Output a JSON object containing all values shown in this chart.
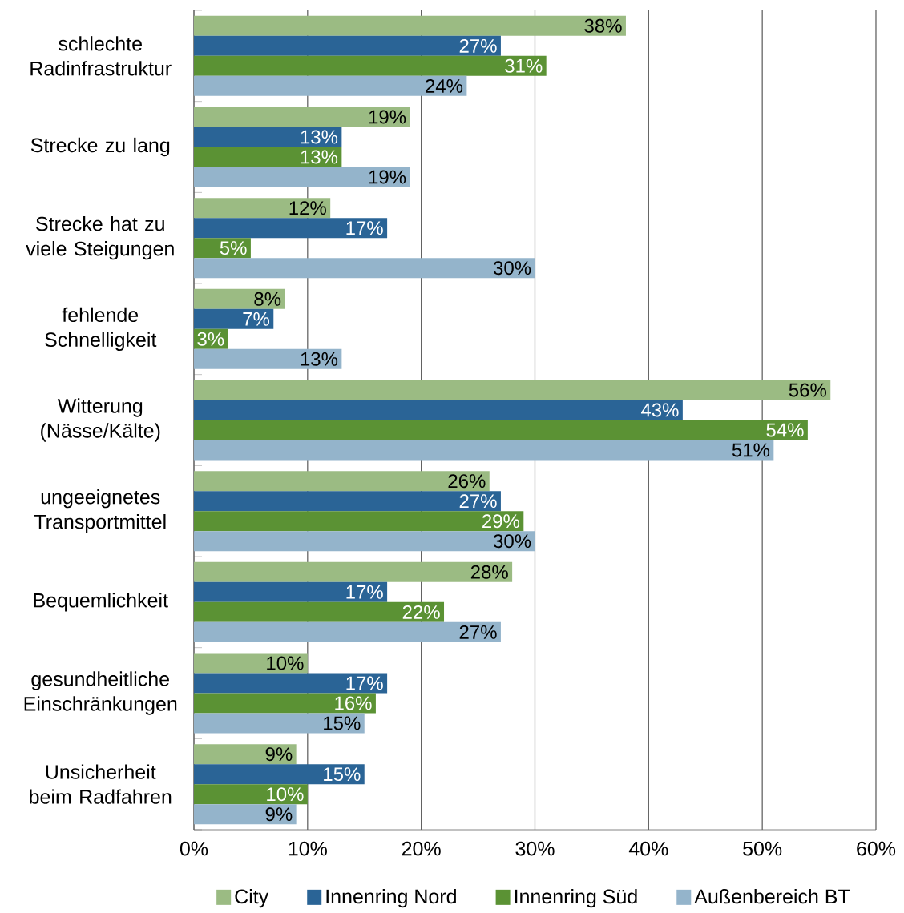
{
  "chart_data": {
    "type": "bar",
    "orientation": "horizontal",
    "categories": [
      "schlechte Radinfrastruktur",
      "Strecke zu lang",
      "Strecke hat zu viele Steigungen",
      "fehlende Schnelligkeit",
      "Witterung (Nässe/Kälte)",
      "ungeeignetes Transportmittel",
      "Bequemlichkeit",
      "gesundheitliche Einschränkungen",
      "Unsicherheit beim Radfahren"
    ],
    "series": [
      {
        "name": "City",
        "color": "#9bbb83",
        "values": [
          38,
          19,
          12,
          8,
          56,
          26,
          28,
          10,
          9
        ],
        "value_labels": [
          "38%",
          "19%",
          "12%",
          "8%",
          "56%",
          "26%",
          "28%",
          "10%",
          "9%"
        ]
      },
      {
        "name": "Innenring Nord",
        "color": "#2a6496",
        "values": [
          27,
          13,
          17,
          7,
          43,
          27,
          17,
          17,
          15
        ],
        "value_labels": [
          "27%",
          "13%",
          "17%",
          "7%",
          "43%",
          "27%",
          "17%",
          "17%",
          "15%"
        ]
      },
      {
        "name": "Innenring Süd",
        "color": "#5b9234",
        "values": [
          31,
          13,
          5,
          3,
          54,
          29,
          22,
          16,
          10
        ],
        "value_labels": [
          "31%",
          "13%",
          "5%",
          "3%",
          "54%",
          "29%",
          "22%",
          "16%",
          "10%"
        ]
      },
      {
        "name": "Außenbereich BT",
        "color": "#94b4cb",
        "values": [
          24,
          19,
          30,
          13,
          51,
          30,
          27,
          15,
          9
        ],
        "value_labels": [
          "24%",
          "19%",
          "30%",
          "13%",
          "51%",
          "30%",
          "27%",
          "15%",
          "9%"
        ]
      }
    ],
    "xlim": [
      0,
      60
    ],
    "xticks": [
      {
        "value": 0,
        "label": "0%"
      },
      {
        "value": 10,
        "label": "10%"
      },
      {
        "value": 20,
        "label": "20%"
      },
      {
        "value": 30,
        "label": "30%"
      },
      {
        "value": 40,
        "label": "40%"
      },
      {
        "value": 50,
        "label": "50%"
      },
      {
        "value": 60,
        "label": "60%"
      }
    ],
    "grid": "x",
    "legend": "bottom"
  }
}
